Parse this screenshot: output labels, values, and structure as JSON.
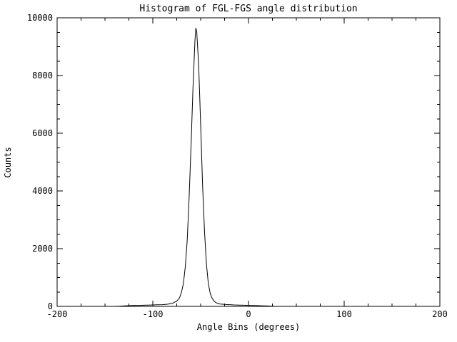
{
  "page": {
    "background": "#ffffff",
    "foreground": "#000000"
  },
  "chart_data": {
    "type": "line",
    "title": "Histogram of FGL-FGS angle distribution",
    "xlabel": "Angle Bins (degrees)",
    "ylabel": "Counts",
    "xlim": [
      -200,
      200
    ],
    "ylim": [
      0,
      10000
    ],
    "xticks": [
      -200,
      -100,
      0,
      100,
      200
    ],
    "xtick_labels": [
      "-200",
      "-100",
      "0",
      "100",
      "200"
    ],
    "yticks": [
      0,
      2000,
      4000,
      6000,
      8000,
      10000
    ],
    "ytick_labels": [
      "0",
      "2000",
      "4000",
      "6000",
      "8000",
      "10000"
    ],
    "x_minor_step": 25,
    "y_minor_step": 500,
    "line_color": "#000000",
    "grid": false,
    "legend": "none",
    "points": [
      [
        -200,
        0
      ],
      [
        -140,
        0
      ],
      [
        -135,
        5
      ],
      [
        -130,
        15
      ],
      [
        -125,
        25
      ],
      [
        -120,
        35
      ],
      [
        -115,
        30
      ],
      [
        -110,
        40
      ],
      [
        -105,
        45
      ],
      [
        -100,
        50
      ],
      [
        -95,
        55
      ],
      [
        -90,
        60
      ],
      [
        -85,
        75
      ],
      [
        -80,
        100
      ],
      [
        -75,
        180
      ],
      [
        -72,
        300
      ],
      [
        -70,
        500
      ],
      [
        -68,
        800
      ],
      [
        -66,
        1400
      ],
      [
        -64,
        2300
      ],
      [
        -62,
        3800
      ],
      [
        -60,
        5600
      ],
      [
        -58,
        7600
      ],
      [
        -56,
        9200
      ],
      [
        -55,
        9650
      ],
      [
        -54,
        9500
      ],
      [
        -52,
        8300
      ],
      [
        -50,
        6300
      ],
      [
        -48,
        4200
      ],
      [
        -46,
        2600
      ],
      [
        -44,
        1500
      ],
      [
        -42,
        800
      ],
      [
        -40,
        450
      ],
      [
        -38,
        280
      ],
      [
        -36,
        180
      ],
      [
        -34,
        130
      ],
      [
        -32,
        100
      ],
      [
        -30,
        85
      ],
      [
        -25,
        70
      ],
      [
        -20,
        60
      ],
      [
        -15,
        50
      ],
      [
        -10,
        45
      ],
      [
        -5,
        40
      ],
      [
        0,
        35
      ],
      [
        5,
        30
      ],
      [
        10,
        25
      ],
      [
        15,
        20
      ],
      [
        20,
        15
      ],
      [
        25,
        8
      ],
      [
        28,
        0
      ],
      [
        30,
        0
      ],
      [
        200,
        0
      ]
    ]
  }
}
